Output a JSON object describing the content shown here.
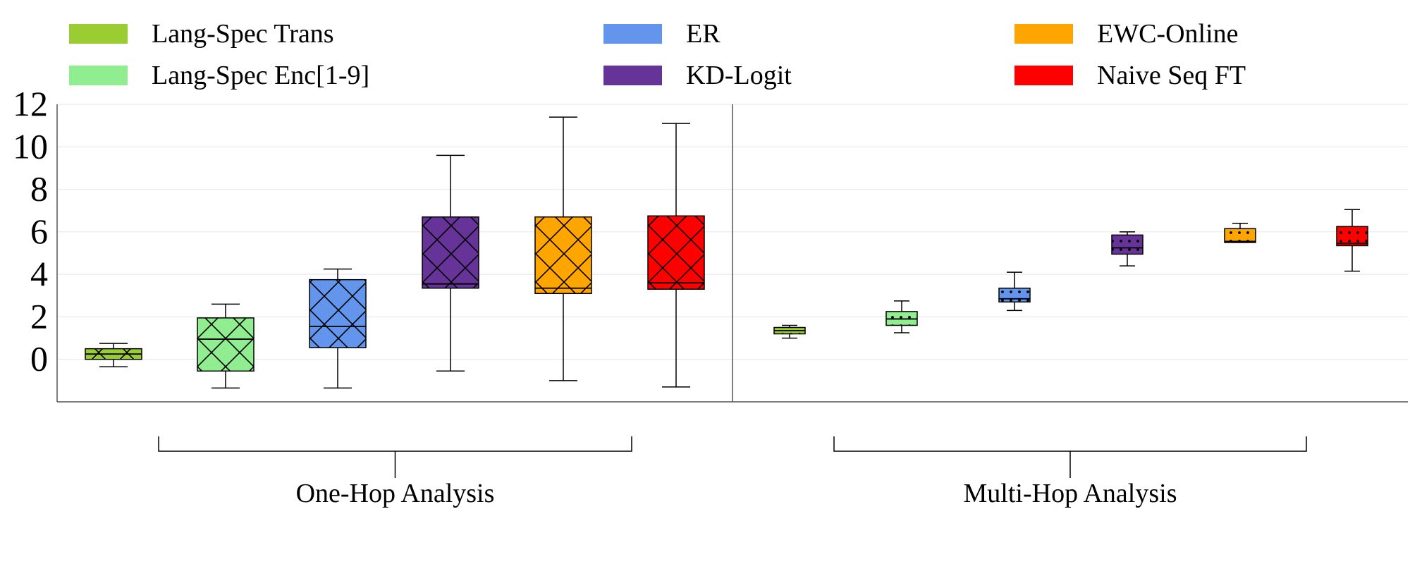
{
  "chart_data": {
    "type": "box",
    "ylim": [
      -2,
      12
    ],
    "y_ticks": [
      "0",
      "2",
      "4",
      "6",
      "8",
      "10",
      "12"
    ],
    "grid": true,
    "legend_position": "top",
    "groups": [
      {
        "label": "One-Hop Analysis",
        "hatch": "crosshatch"
      },
      {
        "label": "Multi-Hop Analysis",
        "hatch": "dots"
      }
    ],
    "series": [
      {
        "name": "Lang-Spec Trans",
        "color": "#9ACD32",
        "one_hop": {
          "whisker_low": -0.35,
          "q1": 0.0,
          "median": 0.25,
          "q3": 0.5,
          "whisker_high": 0.75
        },
        "multi_hop": {
          "whisker_low": 1.0,
          "q1": 1.2,
          "median": 1.35,
          "q3": 1.5,
          "whisker_high": 1.6
        }
      },
      {
        "name": "Lang-Spec Enc[1-9]",
        "color": "#90EE90",
        "one_hop": {
          "whisker_low": -1.35,
          "q1": -0.55,
          "median": 0.95,
          "q3": 1.95,
          "whisker_high": 2.6
        },
        "multi_hop": {
          "whisker_low": 1.25,
          "q1": 1.6,
          "median": 1.9,
          "q3": 2.25,
          "whisker_high": 2.75
        }
      },
      {
        "name": "ER",
        "color": "#6495ED",
        "one_hop": {
          "whisker_low": -1.35,
          "q1": 0.55,
          "median": 1.55,
          "q3": 3.75,
          "whisker_high": 4.25
        },
        "multi_hop": {
          "whisker_low": 2.3,
          "q1": 2.7,
          "median": 2.85,
          "q3": 3.35,
          "whisker_high": 4.1
        }
      },
      {
        "name": "KD-Logit",
        "color": "#663399",
        "one_hop": {
          "whisker_low": -0.55,
          "q1": 3.35,
          "median": 3.55,
          "q3": 6.7,
          "whisker_high": 9.6
        },
        "multi_hop": {
          "whisker_low": 4.4,
          "q1": 4.95,
          "median": 5.25,
          "q3": 5.85,
          "whisker_high": 6.0
        }
      },
      {
        "name": "EWC-Online",
        "color": "#FFA500",
        "one_hop": {
          "whisker_low": -1.0,
          "q1": 3.1,
          "median": 3.35,
          "q3": 6.7,
          "whisker_high": 11.4
        },
        "multi_hop": {
          "whisker_low": 5.5,
          "q1": 5.5,
          "median": 5.55,
          "q3": 6.15,
          "whisker_high": 6.4
        }
      },
      {
        "name": "Naive Seq FT",
        "color": "#FF0000",
        "one_hop": {
          "whisker_low": -1.3,
          "q1": 3.3,
          "median": 3.6,
          "q3": 6.75,
          "whisker_high": 11.1
        },
        "multi_hop": {
          "whisker_low": 4.15,
          "q1": 5.35,
          "median": 5.45,
          "q3": 6.25,
          "whisker_high": 7.05
        }
      }
    ]
  }
}
